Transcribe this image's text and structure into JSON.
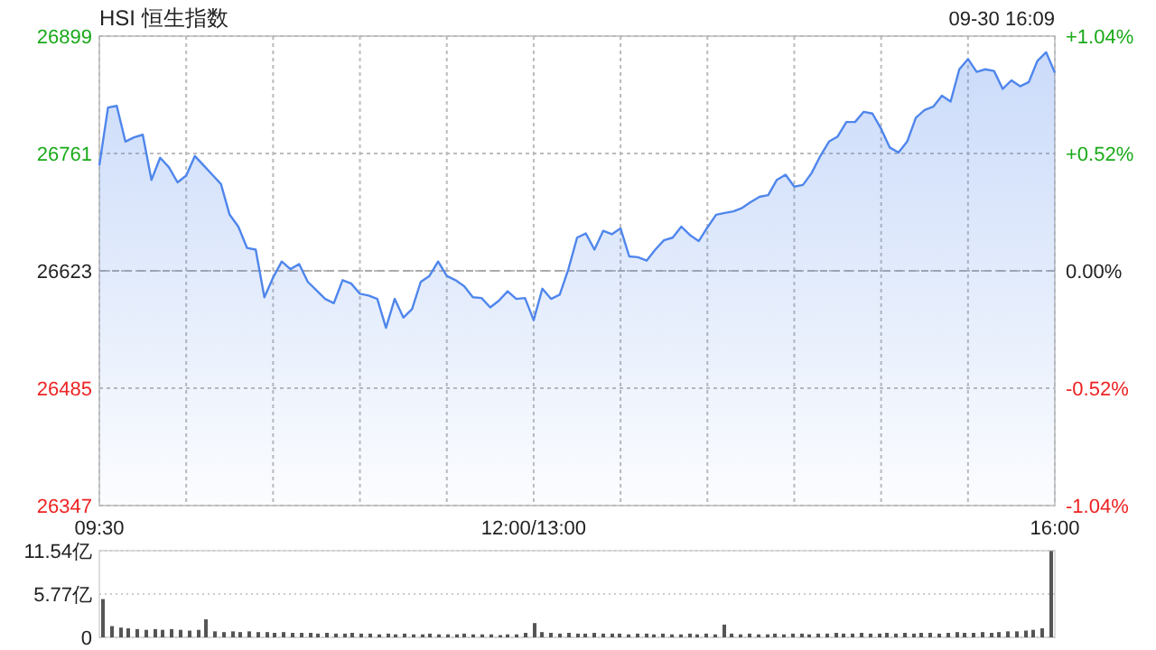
{
  "chart_data": [
    {
      "type": "area",
      "title": "HSI 恒生指数",
      "annotations": [
        "09-30 16:09"
      ],
      "categories": [
        "09:30",
        null,
        null,
        null,
        null,
        null,
        null,
        null,
        null,
        null,
        null,
        null,
        null,
        null,
        null,
        null,
        null,
        null,
        null,
        null,
        null,
        null,
        null,
        null,
        null,
        null,
        null,
        null,
        null,
        null,
        null,
        null,
        null,
        null,
        null,
        null,
        null,
        null,
        null,
        null,
        null,
        null,
        null,
        null,
        null,
        null,
        null,
        null,
        null,
        null,
        "12:00/13:00",
        null,
        null,
        null,
        null,
        null,
        null,
        null,
        null,
        null,
        null,
        null,
        null,
        null,
        null,
        null,
        null,
        null,
        null,
        null,
        null,
        null,
        null,
        null,
        null,
        null,
        null,
        null,
        null,
        null,
        null,
        null,
        null,
        null,
        null,
        null,
        null,
        null,
        null,
        null,
        null,
        null,
        null,
        null,
        null,
        null,
        null,
        null,
        null,
        null,
        null,
        null,
        null,
        null,
        null,
        null,
        null,
        null,
        null,
        null,
        "16:00"
      ],
      "series": [
        {
          "color": "#4f86ec",
          "values": [
            26747,
            26815,
            26817,
            26775,
            26780,
            26783,
            26730,
            26756,
            26745,
            26727,
            26735,
            26758,
            26747,
            26736,
            26725,
            26689,
            26675,
            26650,
            26648,
            26592,
            26615,
            26634,
            26625,
            26631,
            26610,
            26600,
            26590,
            26585,
            26612,
            26608,
            26596,
            26594,
            26590,
            26556,
            26590,
            26568,
            26578,
            26610,
            26617,
            26634,
            26617,
            26612,
            26605,
            26592,
            26591,
            26580,
            26588,
            26599,
            26590,
            26591,
            26565,
            26602,
            26590,
            26595,
            26625,
            26662,
            26667,
            26648,
            26670,
            26666,
            26673,
            26640,
            26639,
            26635,
            26648,
            26659,
            26662,
            26675,
            26665,
            26658,
            26674,
            26689,
            26691,
            26693,
            26697,
            26704,
            26710,
            26712,
            26730,
            26736,
            26722,
            26724,
            26738,
            26758,
            26775,
            26781,
            26798,
            26798,
            26810,
            26808,
            26790,
            26768,
            26762,
            26775,
            26803,
            26812,
            26816,
            26829,
            26822,
            26860,
            26872,
            26857,
            26860,
            26858,
            26837,
            26847,
            26840,
            26845,
            26870,
            26880,
            26856
          ]
        }
      ],
      "ylim": [
        26347,
        26899
      ],
      "yticks": [
        26347,
        26485,
        26623,
        26761,
        26899
      ],
      "y2lim": [
        -1.04,
        1.04
      ],
      "y2ticks": [
        {
          "value": -1.04,
          "label": "-1.04%"
        },
        {
          "value": -0.52,
          "label": "-0.52%"
        },
        {
          "value": 0,
          "label": "0.00%"
        },
        {
          "value": 0.52,
          "label": "+0.52%"
        },
        {
          "value": 1.04,
          "label": "+1.04%"
        }
      ],
      "ref_lines": [
        {
          "axis": "y",
          "value": 26623,
          "line_style": "dashed",
          "color": "#aaaaaa"
        }
      ],
      "grid": true
    },
    {
      "type": "bar",
      "categories": [
        null,
        null,
        null,
        null,
        null,
        null,
        null,
        null,
        null,
        null,
        null,
        null,
        null,
        null,
        null,
        null,
        null,
        null,
        null,
        null,
        null,
        null,
        null,
        null,
        null,
        null,
        null,
        null,
        null,
        null,
        null,
        null,
        null,
        null,
        null,
        null,
        null,
        null,
        null,
        null,
        null,
        null,
        null,
        null,
        null,
        null,
        null,
        null,
        null,
        null,
        null,
        null,
        null,
        null,
        null,
        null,
        null,
        null,
        null,
        null,
        null,
        null,
        null,
        null,
        null,
        null,
        null,
        null,
        null,
        null,
        null,
        null,
        null,
        null,
        null,
        null,
        null,
        null,
        null,
        null,
        null,
        null,
        null,
        null,
        null,
        null,
        null,
        null,
        null,
        null,
        null,
        null,
        null,
        null,
        null,
        null,
        null,
        null,
        null,
        null,
        null,
        null,
        null,
        null,
        null,
        null,
        null,
        null,
        null,
        null,
        null
      ],
      "values": [
        5.1,
        1.5,
        1.3,
        1.2,
        1.1,
        1.0,
        1.1,
        1.0,
        1.1,
        1.0,
        0.9,
        1.0,
        2.4,
        0.8,
        0.7,
        0.8,
        0.7,
        0.8,
        0.7,
        0.7,
        0.6,
        0.7,
        0.6,
        0.6,
        0.6,
        0.5,
        0.6,
        0.5,
        0.5,
        0.6,
        0.5,
        0.5,
        0.4,
        0.5,
        0.4,
        0.5,
        0.4,
        0.4,
        0.5,
        0.4,
        0.4,
        0.4,
        0.5,
        0.4,
        0.4,
        0.4,
        0.3,
        0.4,
        0.4,
        0.6,
        1.9,
        0.7,
        0.6,
        0.5,
        0.6,
        0.5,
        0.5,
        0.6,
        0.5,
        0.5,
        0.5,
        0.4,
        0.5,
        0.5,
        0.4,
        0.5,
        0.4,
        0.4,
        0.5,
        0.4,
        0.5,
        0.4,
        1.7,
        0.5,
        0.4,
        0.5,
        0.4,
        0.4,
        0.5,
        0.4,
        0.5,
        0.5,
        0.4,
        0.5,
        0.5,
        0.6,
        0.5,
        0.5,
        0.6,
        0.5,
        0.5,
        0.6,
        0.5,
        0.6,
        0.5,
        0.6,
        0.6,
        0.5,
        0.6,
        0.7,
        0.6,
        0.6,
        0.7,
        0.6,
        0.7,
        0.8,
        0.8,
        0.9,
        1.0,
        1.2,
        11.5
      ],
      "color": "#555555",
      "ylim": [
        0,
        11.54
      ],
      "yticks": [
        0,
        {
          "value": 5.77,
          "label": "5.77亿"
        },
        {
          "value": 11.54,
          "label": "11.54亿"
        }
      ],
      "grid": "y"
    }
  ]
}
